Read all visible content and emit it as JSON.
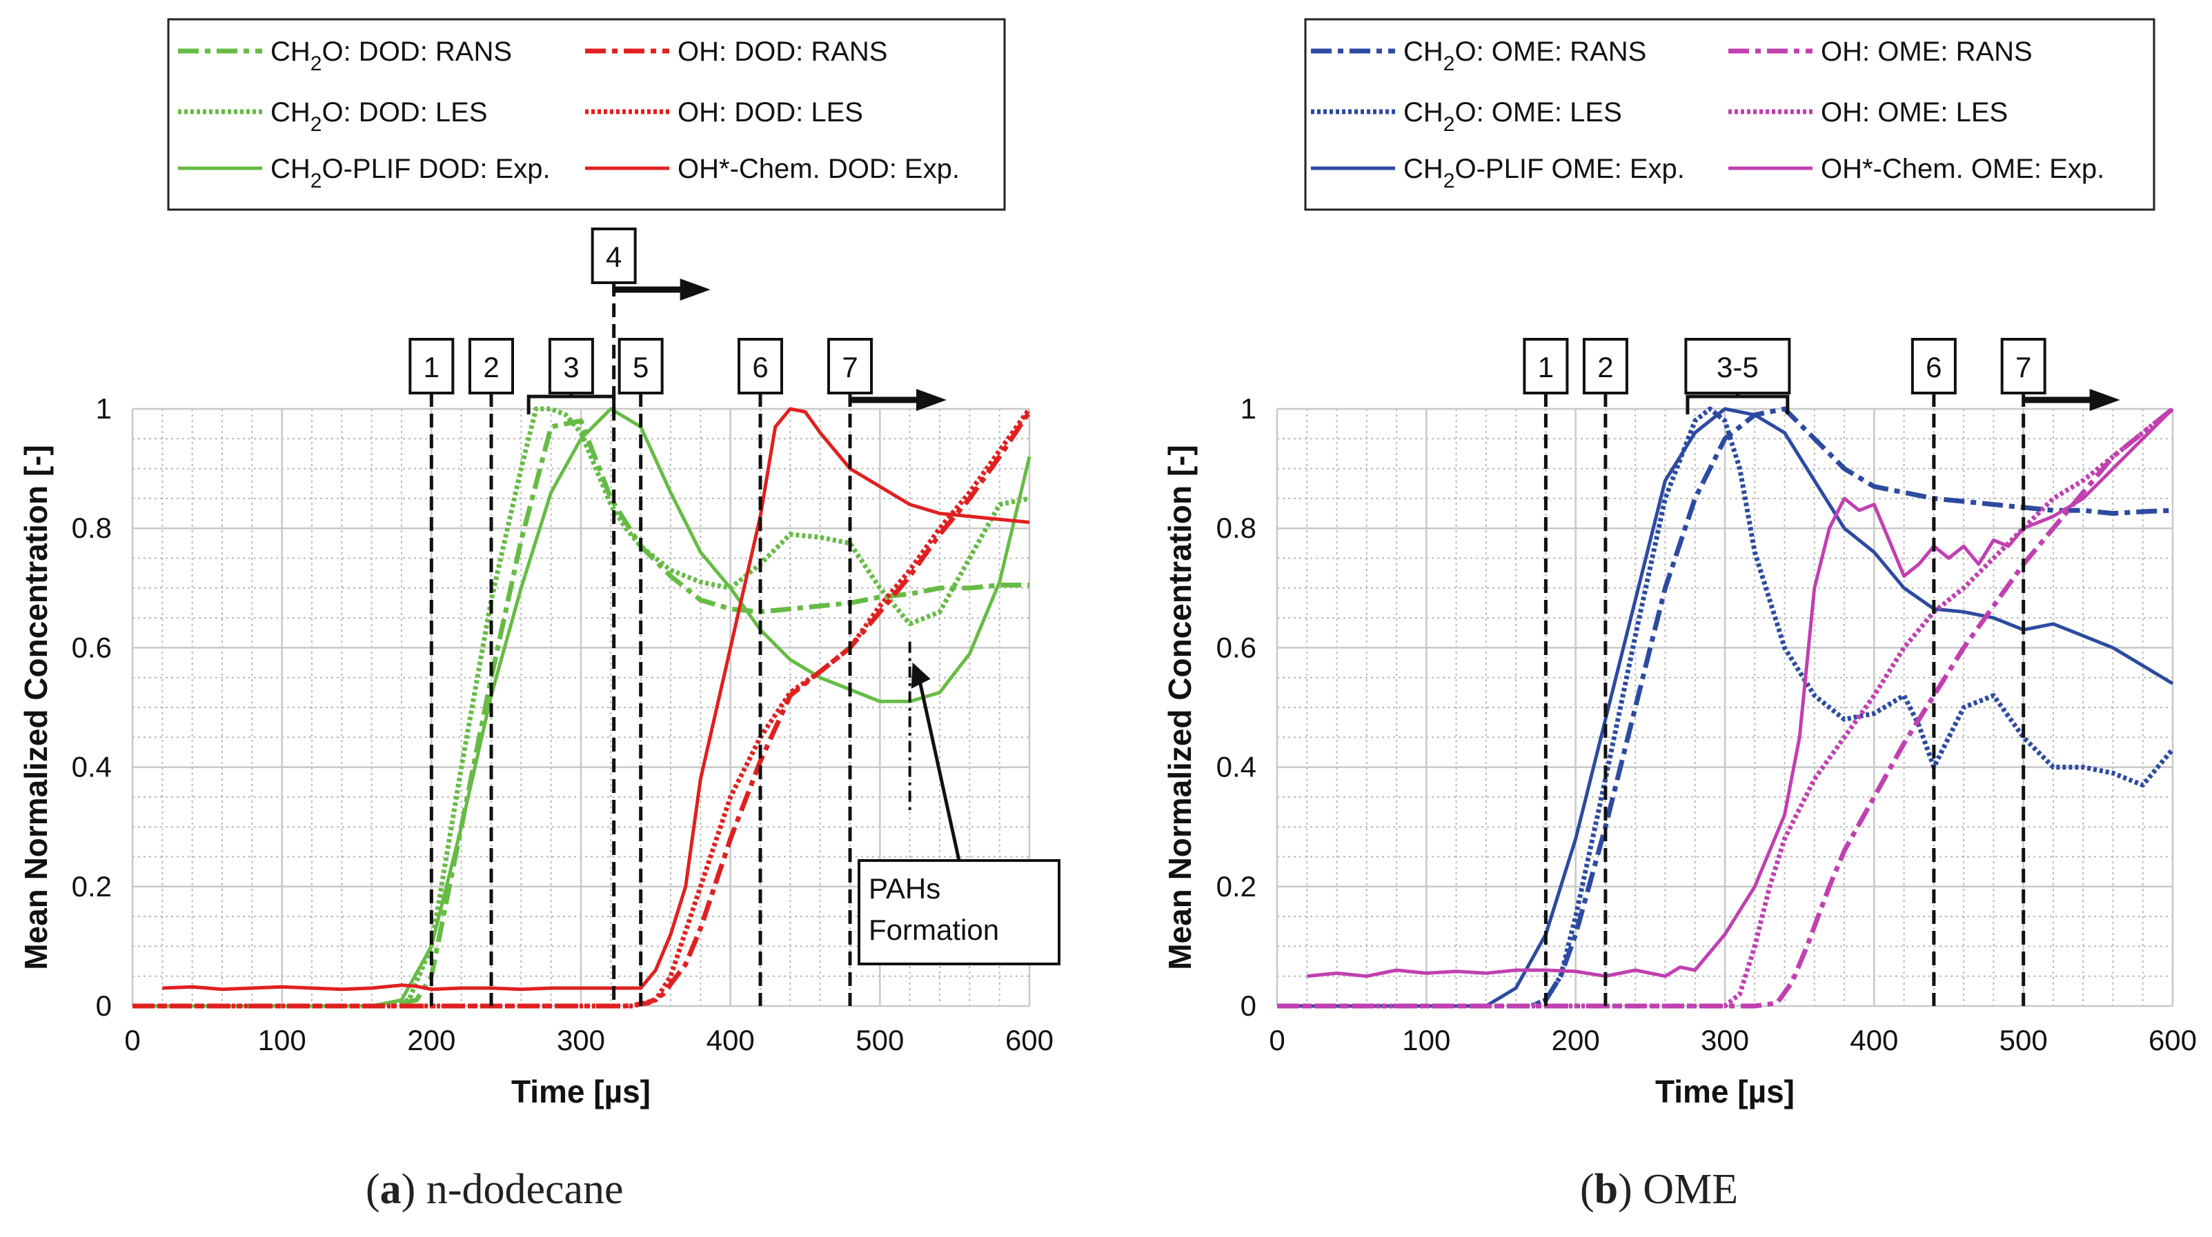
{
  "chart_data": [
    {
      "type": "line",
      "panel_letter": "a",
      "caption": "n-dodecane",
      "xlabel": "Time [µs]",
      "ylabel": "Mean Normalized Concentration [-]",
      "xlim": [
        0,
        600
      ],
      "ylim": [
        0,
        1
      ],
      "xticks": [
        "0",
        "100",
        "200",
        "300",
        "400",
        "500",
        "600"
      ],
      "yticks": [
        "0",
        "0.2",
        "0.4",
        "0.6",
        "0.8",
        "1"
      ],
      "grid": true,
      "legend_position": "top",
      "legend": [
        "CH2O: DOD: RANS",
        "CH2O: DOD: LES",
        "CH2O-PLIF DOD: Exp.",
        "OH: DOD: RANS",
        "OH: DOD: LES",
        "OH*-Chem. DOD: Exp."
      ],
      "series": [
        {
          "name": "CH2O: DOD: RANS",
          "color": "#66bb44",
          "style": "dashdot",
          "x": [
            0,
            170,
            190,
            200,
            220,
            240,
            260,
            280,
            300,
            320,
            340,
            360,
            380,
            400,
            420,
            440,
            460,
            480,
            500,
            520,
            540,
            560,
            580,
            600
          ],
          "y": [
            0,
            0,
            0.01,
            0.05,
            0.3,
            0.55,
            0.78,
            0.97,
            0.98,
            0.85,
            0.77,
            0.72,
            0.68,
            0.665,
            0.66,
            0.665,
            0.67,
            0.675,
            0.685,
            0.69,
            0.7,
            0.7,
            0.705,
            0.705
          ]
        },
        {
          "name": "CH2O: DOD: LES",
          "color": "#66bb44",
          "style": "dotted",
          "x": [
            0,
            170,
            185,
            200,
            220,
            240,
            260,
            270,
            280,
            290,
            300,
            310,
            320,
            330,
            340,
            360,
            380,
            400,
            420,
            440,
            460,
            480,
            500,
            520,
            540,
            560,
            580,
            600
          ],
          "y": [
            0,
            0,
            0.01,
            0.1,
            0.4,
            0.68,
            0.9,
            1.0,
            1.0,
            0.99,
            0.96,
            0.9,
            0.84,
            0.8,
            0.77,
            0.73,
            0.71,
            0.7,
            0.74,
            0.79,
            0.785,
            0.775,
            0.7,
            0.64,
            0.66,
            0.75,
            0.84,
            0.85
          ]
        },
        {
          "name": "CH2O-PLIF DOD: Exp.",
          "color": "#66bb44",
          "style": "solid",
          "x": [
            0,
            160,
            180,
            200,
            220,
            240,
            260,
            280,
            300,
            320,
            340,
            360,
            380,
            400,
            420,
            440,
            460,
            480,
            500,
            520,
            540,
            560,
            580,
            600
          ],
          "y": [
            0,
            0,
            0.01,
            0.1,
            0.3,
            0.52,
            0.7,
            0.86,
            0.95,
            1.0,
            0.97,
            0.86,
            0.76,
            0.7,
            0.63,
            0.58,
            0.55,
            0.53,
            0.51,
            0.51,
            0.525,
            0.59,
            0.71,
            0.92
          ]
        },
        {
          "name": "OH: DOD: RANS",
          "color": "#e02020",
          "style": "dashdot",
          "x": [
            0,
            300,
            330,
            345,
            355,
            370,
            380,
            400,
            420,
            440,
            460,
            480,
            500,
            520,
            540,
            560,
            580,
            600
          ],
          "y": [
            0,
            0,
            0,
            0.005,
            0.02,
            0.07,
            0.13,
            0.28,
            0.41,
            0.52,
            0.56,
            0.6,
            0.66,
            0.72,
            0.79,
            0.85,
            0.92,
            0.995
          ]
        },
        {
          "name": "OH: DOD: LES",
          "color": "#e02020",
          "style": "dotted",
          "x": [
            0,
            300,
            335,
            350,
            360,
            380,
            400,
            420,
            440,
            460,
            480,
            500,
            520,
            540,
            560,
            580,
            600
          ],
          "y": [
            0,
            0,
            0,
            0.01,
            0.05,
            0.2,
            0.35,
            0.45,
            0.525,
            0.56,
            0.6,
            0.67,
            0.73,
            0.8,
            0.86,
            0.93,
            1.0
          ]
        },
        {
          "name": "OH*-Chem. DOD: Exp.",
          "color": "#e02020",
          "style": "solid",
          "x": [
            20,
            40,
            60,
            80,
            100,
            120,
            140,
            160,
            180,
            190,
            200,
            220,
            240,
            260,
            280,
            300,
            320,
            340,
            350,
            360,
            370,
            380,
            400,
            420,
            430,
            440,
            450,
            460,
            480,
            500,
            520,
            540,
            560,
            580,
            600
          ],
          "y": [
            0.03,
            0.032,
            0.028,
            0.03,
            0.032,
            0.03,
            0.028,
            0.03,
            0.035,
            0.033,
            0.028,
            0.03,
            0.03,
            0.028,
            0.03,
            0.03,
            0.03,
            0.03,
            0.06,
            0.12,
            0.2,
            0.38,
            0.6,
            0.82,
            0.97,
            1.0,
            0.995,
            0.96,
            0.9,
            0.87,
            0.84,
            0.825,
            0.82,
            0.815,
            0.81
          ]
        }
      ],
      "events": [
        {
          "label": "1",
          "x": 200
        },
        {
          "label": "2",
          "x": 240
        },
        {
          "label": "3",
          "x_start": 265,
          "x_end": 322
        },
        {
          "label": "4",
          "x": 322,
          "arrow": true
        },
        {
          "label": "5",
          "x": 340
        },
        {
          "label": "6",
          "x": 420
        },
        {
          "label": "7",
          "x": 480,
          "arrow": true
        }
      ],
      "annotation": {
        "text_lines": [
          "PAHs",
          "Formation"
        ],
        "x": 520,
        "y": 0.58
      }
    },
    {
      "type": "line",
      "panel_letter": "b",
      "caption": "OME",
      "xlabel": "Time [µs]",
      "ylabel": "Mean Normalized Concentration [-]",
      "xlim": [
        0,
        600
      ],
      "ylim": [
        0,
        1
      ],
      "xticks": [
        "0",
        "100",
        "200",
        "300",
        "400",
        "500",
        "600"
      ],
      "yticks": [
        "0",
        "0.2",
        "0.4",
        "0.6",
        "0.8",
        "1"
      ],
      "grid": true,
      "legend_position": "top",
      "legend": [
        "CH2O: OME: RANS",
        "CH2O: OME: LES",
        "CH2O-PLIF OME: Exp.",
        "OH: OME: RANS",
        "OH: OME: LES",
        "OH*-Chem. OME: Exp."
      ],
      "series": [
        {
          "name": "CH2O: OME: RANS",
          "color": "#2c4aa0",
          "style": "dashdot",
          "x": [
            0,
            150,
            170,
            180,
            190,
            200,
            220,
            240,
            260,
            280,
            300,
            320,
            340,
            360,
            380,
            400,
            420,
            440,
            460,
            480,
            500,
            520,
            540,
            560,
            580,
            600
          ],
          "y": [
            0,
            0,
            0,
            0.01,
            0.05,
            0.12,
            0.3,
            0.5,
            0.7,
            0.85,
            0.95,
            0.99,
            1.0,
            0.95,
            0.9,
            0.87,
            0.86,
            0.85,
            0.845,
            0.84,
            0.835,
            0.83,
            0.83,
            0.825,
            0.828,
            0.83
          ]
        },
        {
          "name": "CH2O: OME: LES",
          "color": "#2c4aa0",
          "style": "dotted",
          "x": [
            0,
            150,
            170,
            180,
            190,
            200,
            220,
            240,
            260,
            280,
            290,
            300,
            310,
            320,
            340,
            360,
            380,
            400,
            420,
            430,
            440,
            460,
            480,
            500,
            520,
            540,
            560,
            580,
            600
          ],
          "y": [
            0,
            0,
            0,
            0.01,
            0.05,
            0.15,
            0.38,
            0.62,
            0.85,
            0.98,
            1.0,
            0.98,
            0.9,
            0.76,
            0.6,
            0.52,
            0.48,
            0.49,
            0.52,
            0.47,
            0.4,
            0.5,
            0.52,
            0.45,
            0.4,
            0.4,
            0.39,
            0.37,
            0.43
          ]
        },
        {
          "name": "CH2O-PLIF OME: Exp.",
          "color": "#2c4aa0",
          "style": "solid",
          "x": [
            0,
            140,
            160,
            180,
            200,
            220,
            240,
            260,
            280,
            300,
            320,
            340,
            360,
            380,
            400,
            420,
            440,
            460,
            480,
            500,
            520,
            540,
            560,
            580,
            600
          ],
          "y": [
            0,
            0,
            0.03,
            0.12,
            0.28,
            0.48,
            0.68,
            0.88,
            0.96,
            1.0,
            0.99,
            0.96,
            0.88,
            0.8,
            0.76,
            0.7,
            0.665,
            0.66,
            0.65,
            0.63,
            0.64,
            0.62,
            0.6,
            0.57,
            0.54
          ]
        },
        {
          "name": "OH: OME: RANS",
          "color": "#c040b0",
          "style": "dashdot",
          "x": [
            0,
            320,
            335,
            345,
            355,
            370,
            380,
            400,
            420,
            440,
            460,
            480,
            500,
            520,
            540,
            560,
            580,
            600
          ],
          "y": [
            0,
            0,
            0.005,
            0.04,
            0.1,
            0.2,
            0.26,
            0.35,
            0.44,
            0.52,
            0.6,
            0.67,
            0.74,
            0.8,
            0.86,
            0.92,
            0.96,
            1.0
          ]
        },
        {
          "name": "OH: OME: LES",
          "color": "#c040b0",
          "style": "dotted",
          "x": [
            0,
            300,
            310,
            320,
            330,
            340,
            360,
            380,
            400,
            420,
            440,
            460,
            480,
            500,
            520,
            540,
            560,
            580,
            600
          ],
          "y": [
            0,
            0,
            0.02,
            0.1,
            0.2,
            0.28,
            0.38,
            0.45,
            0.52,
            0.6,
            0.66,
            0.7,
            0.75,
            0.8,
            0.85,
            0.88,
            0.92,
            0.96,
            1.0
          ]
        },
        {
          "name": "OH*-Chem. OME: Exp.",
          "color": "#c040b0",
          "style": "solid",
          "x": [
            20,
            40,
            60,
            80,
            100,
            120,
            140,
            160,
            180,
            200,
            220,
            240,
            260,
            270,
            280,
            300,
            320,
            340,
            350,
            360,
            370,
            380,
            390,
            400,
            410,
            420,
            430,
            440,
            450,
            460,
            470,
            480,
            490,
            500,
            510,
            520,
            540,
            560,
            580,
            600
          ],
          "y": [
            0.05,
            0.055,
            0.05,
            0.06,
            0.055,
            0.058,
            0.055,
            0.06,
            0.06,
            0.058,
            0.05,
            0.06,
            0.05,
            0.065,
            0.06,
            0.12,
            0.2,
            0.32,
            0.45,
            0.7,
            0.8,
            0.85,
            0.83,
            0.84,
            0.78,
            0.72,
            0.74,
            0.77,
            0.75,
            0.77,
            0.74,
            0.78,
            0.77,
            0.8,
            0.81,
            0.82,
            0.85,
            0.9,
            0.95,
            1.0
          ]
        }
      ],
      "events": [
        {
          "label": "1",
          "x": 180
        },
        {
          "label": "2",
          "x": 220
        },
        {
          "label": "3-5",
          "x_start": 275,
          "x_end": 342
        },
        {
          "label": "6",
          "x": 440
        },
        {
          "label": "7",
          "x": 500,
          "arrow": true
        }
      ]
    }
  ]
}
